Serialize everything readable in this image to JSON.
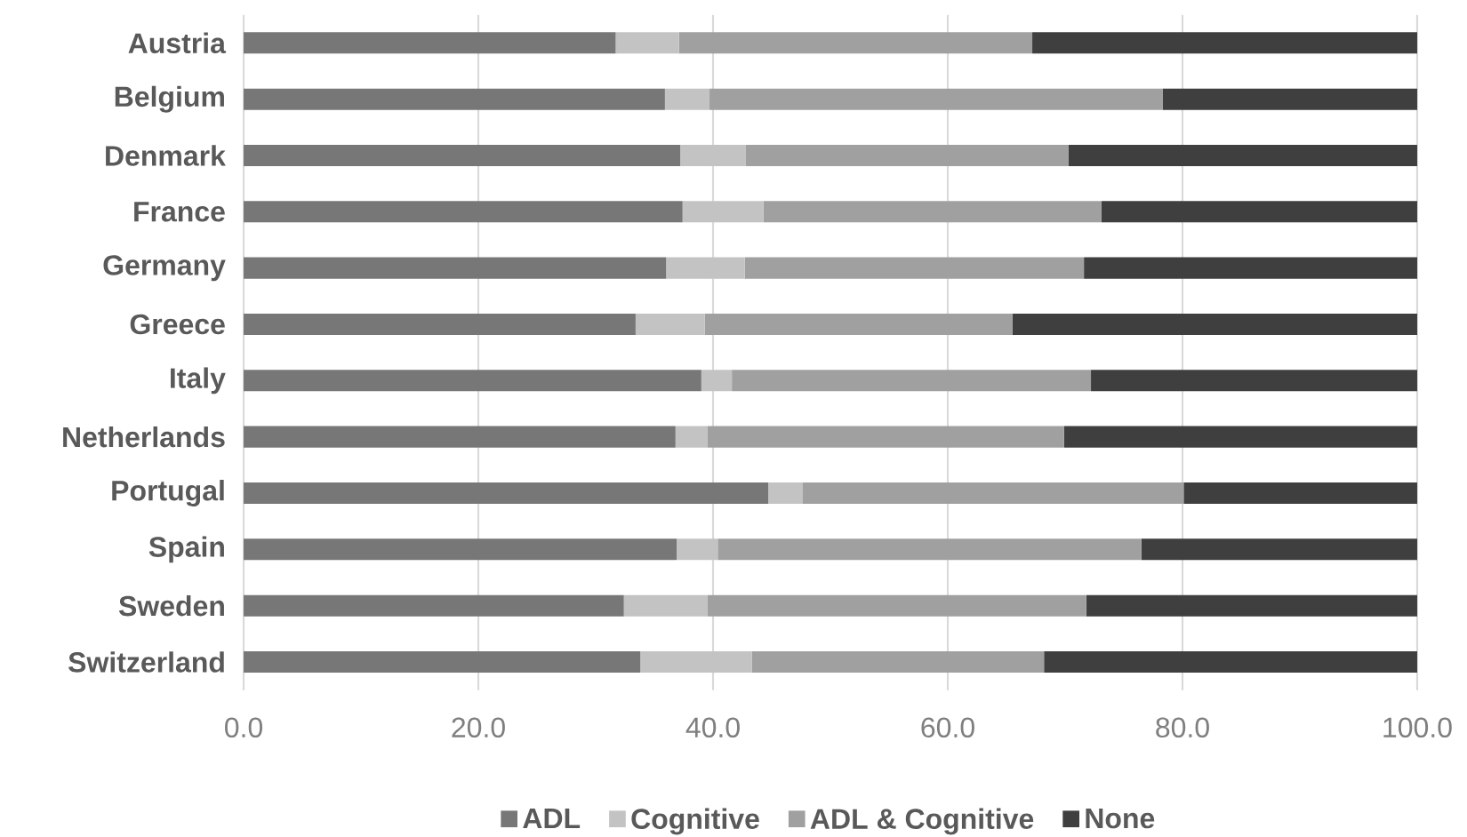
{
  "chart_data": {
    "type": "bar",
    "orientation": "horizontal",
    "stacked": true,
    "categories": [
      "Austria",
      "Belgium",
      "Denmark",
      "France",
      "Germany",
      "Greece",
      "Italy",
      "Netherlands",
      "Portugal",
      "Spain",
      "Sweden",
      "Switzerland"
    ],
    "series": [
      {
        "name": "ADL",
        "color": "#777777",
        "values": [
          31.7,
          35.9,
          37.2,
          37.4,
          36.0,
          33.4,
          39.0,
          36.8,
          44.7,
          36.9,
          32.4,
          33.8
        ]
      },
      {
        "name": "Cognitive",
        "color": "#c3c3c3",
        "values": [
          5.4,
          3.8,
          5.6,
          6.9,
          6.7,
          5.9,
          2.6,
          2.7,
          2.9,
          3.5,
          7.1,
          9.5
        ]
      },
      {
        "name": "ADL & Cognitive",
        "color": "#a0a0a0",
        "values": [
          30.1,
          38.6,
          27.5,
          28.8,
          28.9,
          26.2,
          30.6,
          30.4,
          32.5,
          36.1,
          32.3,
          24.9
        ]
      },
      {
        "name": "None",
        "color": "#3f3f3f",
        "values": [
          32.8,
          21.7,
          29.7,
          26.9,
          28.4,
          34.5,
          27.8,
          30.1,
          19.9,
          23.5,
          28.2,
          31.8
        ]
      }
    ],
    "xlim": [
      0,
      100
    ],
    "xticks": [
      {
        "value": 0,
        "label": "0.0"
      },
      {
        "value": 20,
        "label": "20.0"
      },
      {
        "value": 40,
        "label": "40.0"
      },
      {
        "value": 60,
        "label": "60.0"
      },
      {
        "value": 80,
        "label": "80.0"
      },
      {
        "value": 100,
        "label": "100.0"
      }
    ],
    "grid": "x",
    "legend": "bottom"
  }
}
